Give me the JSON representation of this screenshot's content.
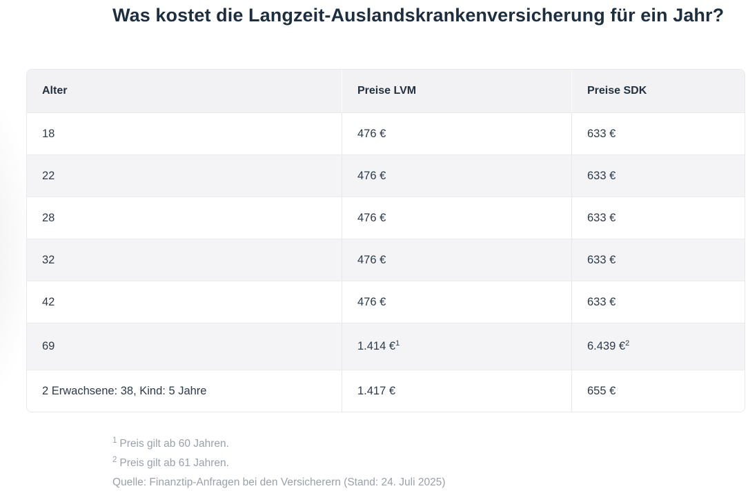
{
  "page": {
    "title": "Was kostet die Langzeit-Auslandskrankenversicherung für ein Jahr?"
  },
  "table": {
    "columns": [
      "Alter",
      "Preise LVM",
      "Preise SDK"
    ],
    "rows": [
      {
        "cells": [
          {
            "text": "18"
          },
          {
            "text": "476 €"
          },
          {
            "text": "633 €"
          }
        ]
      },
      {
        "cells": [
          {
            "text": "22"
          },
          {
            "text": "476 €"
          },
          {
            "text": "633 €"
          }
        ]
      },
      {
        "cells": [
          {
            "text": "28"
          },
          {
            "text": "476 €"
          },
          {
            "text": "633 €"
          }
        ]
      },
      {
        "cells": [
          {
            "text": "32"
          },
          {
            "text": "476 €"
          },
          {
            "text": "633 €"
          }
        ]
      },
      {
        "cells": [
          {
            "text": "42"
          },
          {
            "text": "476 €"
          },
          {
            "text": "633 €"
          }
        ]
      },
      {
        "cells": [
          {
            "text": "69"
          },
          {
            "text": "1.414 €",
            "sup": "1"
          },
          {
            "text": "6.439 €",
            "sup": "2"
          }
        ],
        "tall": true
      },
      {
        "cells": [
          {
            "text": "2 Erwachsene: 38, Kind: 5 Jahre"
          },
          {
            "text": "1.417 €"
          },
          {
            "text": "655 €"
          }
        ]
      }
    ]
  },
  "footnotes": [
    {
      "sup": "1",
      "text": "Preis gilt ab 60 Jahren."
    },
    {
      "sup": "2",
      "text": "Preis gilt ab 61 Jahren."
    },
    {
      "sup": "",
      "text": "Quelle: Finanztip-Anfragen bei den Versicherern (Stand: 24. Juli 2025)"
    }
  ],
  "colors": {
    "heading_text": "#1d2e40",
    "body_text": "#2c3a49",
    "header_bg": "#f2f2f4",
    "alt_row_bg": "#f4f4f6",
    "table_border": "#e9e9ec",
    "footnote_text": "#9aa1aa"
  }
}
